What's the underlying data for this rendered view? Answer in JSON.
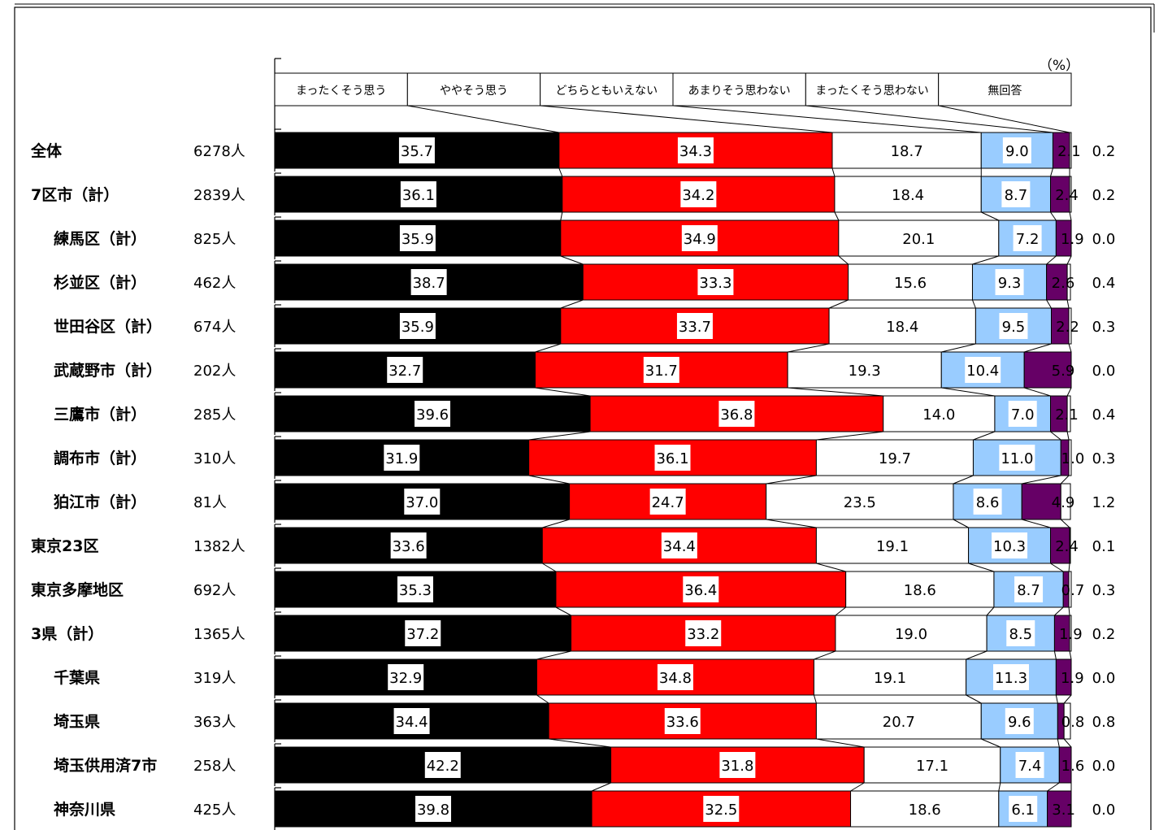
{
  "chart_data": {
    "type": "bar",
    "orientation": "horizontal",
    "stacked": true,
    "percent_stacked": true,
    "unit_label": "（%）",
    "legend_position": "top",
    "grid": false,
    "xlim": [
      0,
      100
    ],
    "legend": [
      {
        "label": "まったくそう思う",
        "color": "#000000"
      },
      {
        "label": "ややそう思う",
        "color": "#ff0000"
      },
      {
        "label": "どちらともいえない",
        "color": "#ffffff"
      },
      {
        "label": "あまりそう思わない",
        "color": "#99ccff"
      },
      {
        "label": "まったくそう思わない",
        "color": "#660066"
      },
      {
        "label": "無回答",
        "color": "#ffffff"
      }
    ],
    "categories": [
      {
        "label": "全体",
        "n": "6278人",
        "indent": false
      },
      {
        "label": "7区市（計）",
        "n": "2839人",
        "indent": false
      },
      {
        "label": "練馬区（計）",
        "n": "825人",
        "indent": true
      },
      {
        "label": "杉並区（計）",
        "n": "462人",
        "indent": true
      },
      {
        "label": "世田谷区（計）",
        "n": "674人",
        "indent": true
      },
      {
        "label": "武蔵野市（計）",
        "n": "202人",
        "indent": true
      },
      {
        "label": "三鷹市（計）",
        "n": "285人",
        "indent": true
      },
      {
        "label": "調布市（計）",
        "n": "310人",
        "indent": true
      },
      {
        "label": "狛江市（計）",
        "n": "81人",
        "indent": true
      },
      {
        "label": "東京23区",
        "n": "1382人",
        "indent": false
      },
      {
        "label": "東京多摩地区",
        "n": "692人",
        "indent": false
      },
      {
        "label": "3県（計）",
        "n": "1365人",
        "indent": false
      },
      {
        "label": "千葉県",
        "n": "319人",
        "indent": true
      },
      {
        "label": "埼玉県",
        "n": "363人",
        "indent": true
      },
      {
        "label": "埼玉供用済7市",
        "n": "258人",
        "indent": true
      },
      {
        "label": "神奈川県",
        "n": "425人",
        "indent": true
      }
    ],
    "series": [
      {
        "name": "まったくそう思う",
        "values": [
          35.7,
          36.1,
          35.9,
          38.7,
          35.9,
          32.7,
          39.6,
          31.9,
          37.0,
          33.6,
          35.3,
          37.2,
          32.9,
          34.4,
          42.2,
          39.8
        ]
      },
      {
        "name": "ややそう思う",
        "values": [
          34.3,
          34.2,
          34.9,
          33.3,
          33.7,
          31.7,
          36.8,
          36.1,
          24.7,
          34.4,
          36.4,
          33.2,
          34.8,
          33.6,
          31.8,
          32.5
        ]
      },
      {
        "name": "どちらともいえない",
        "values": [
          18.7,
          18.4,
          20.1,
          15.6,
          18.4,
          19.3,
          14.0,
          19.7,
          23.5,
          19.1,
          18.6,
          19.0,
          19.1,
          20.7,
          17.1,
          18.6
        ]
      },
      {
        "name": "あまりそう思わない",
        "values": [
          9.0,
          8.7,
          7.2,
          9.3,
          9.5,
          10.4,
          7.0,
          11.0,
          8.6,
          10.3,
          8.7,
          8.5,
          11.3,
          9.6,
          7.4,
          6.1
        ]
      },
      {
        "name": "まったくそう思わない",
        "values": [
          2.1,
          2.4,
          1.9,
          2.6,
          2.2,
          5.9,
          2.1,
          1.0,
          4.9,
          2.4,
          0.7,
          1.9,
          1.9,
          0.8,
          1.6,
          3.1
        ]
      },
      {
        "name": "無回答",
        "values": [
          0.2,
          0.2,
          0.0,
          0.4,
          0.3,
          0.0,
          0.4,
          0.3,
          1.2,
          0.1,
          0.3,
          0.2,
          0.0,
          0.8,
          0.0,
          0.0
        ]
      }
    ],
    "displayed_labels": [
      [
        "35.7",
        "34.3",
        "18.7",
        "9.0",
        "2.1",
        "0.2"
      ],
      [
        "36.1",
        "34.2",
        "18.4",
        "8.7",
        "2.4",
        "0.2"
      ],
      [
        "35.9",
        "34.9",
        "20.1",
        "7.2",
        "1.9",
        "0.0"
      ],
      [
        "38.7",
        "33.3",
        "15.6",
        "9.3",
        "2.6",
        "0.4"
      ],
      [
        "35.9",
        "33.7",
        "18.4",
        "9.5",
        "2.2",
        "0.3"
      ],
      [
        "32.7",
        "31.7",
        "19.3",
        "10.4",
        "5.9",
        "0.0"
      ],
      [
        "39.6",
        "36.8",
        "14.0",
        "7.0",
        "2.1",
        "0.4"
      ],
      [
        "31.9",
        "36.1",
        "19.7",
        "11.0",
        "1.0",
        "0.3"
      ],
      [
        "37.0",
        "24.7",
        "23.5",
        "8.6",
        "4.9",
        "1.2"
      ],
      [
        "33.6",
        "34.4",
        "19.1",
        "10.3",
        "2.4",
        "0.1"
      ],
      [
        "35.3",
        "36.4",
        "18.6",
        "8.7",
        "0.7",
        "0.3"
      ],
      [
        "37.2",
        "33.2",
        "19.0",
        "8.5",
        "1.9",
        "0.2"
      ],
      [
        "32.9",
        "34.8",
        "19.1",
        "11.3",
        "1.9",
        "0.0"
      ],
      [
        "34.4",
        "33.6",
        "20.7",
        "9.6",
        "0.8",
        "0.8"
      ],
      [
        "42.2",
        "31.8",
        "17.1",
        "7.4",
        "1.6",
        "0.0"
      ],
      [
        "39.8",
        "32.5",
        "18.6",
        "6.1",
        "3.1",
        "0.0"
      ]
    ]
  }
}
